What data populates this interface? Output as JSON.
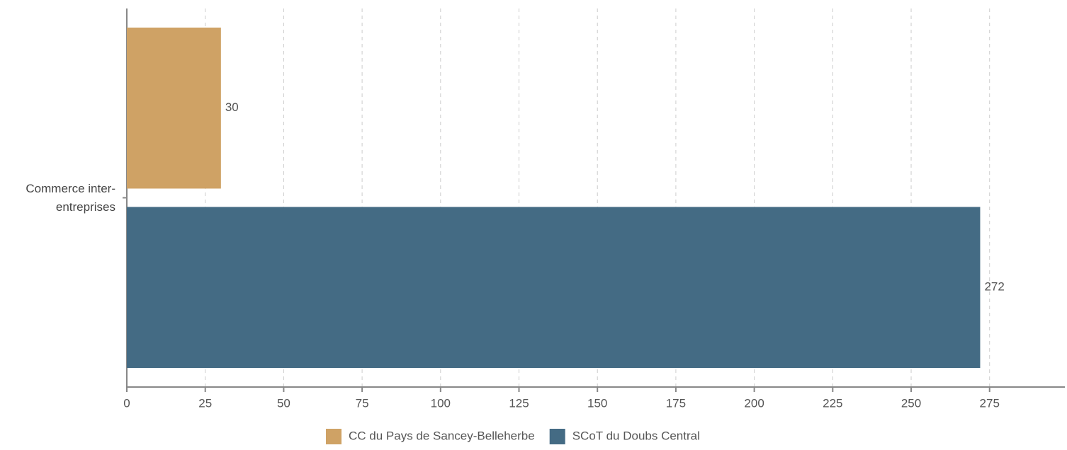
{
  "chart_data": {
    "type": "hbar",
    "categories": [
      "Commerce inter-entreprises"
    ],
    "series": [
      {
        "name": "CC du Pays de Sancey-Belleherbe",
        "color": "#cfa265",
        "values": [
          30
        ]
      },
      {
        "name": "SCoT du Doubs Central",
        "color": "#446b84",
        "values": [
          272
        ]
      }
    ],
    "xlim": [
      0,
      299
    ],
    "xticks": [
      0,
      25,
      50,
      75,
      100,
      125,
      150,
      175,
      200,
      225,
      250,
      275
    ],
    "grid": true,
    "legend": "bottom"
  }
}
